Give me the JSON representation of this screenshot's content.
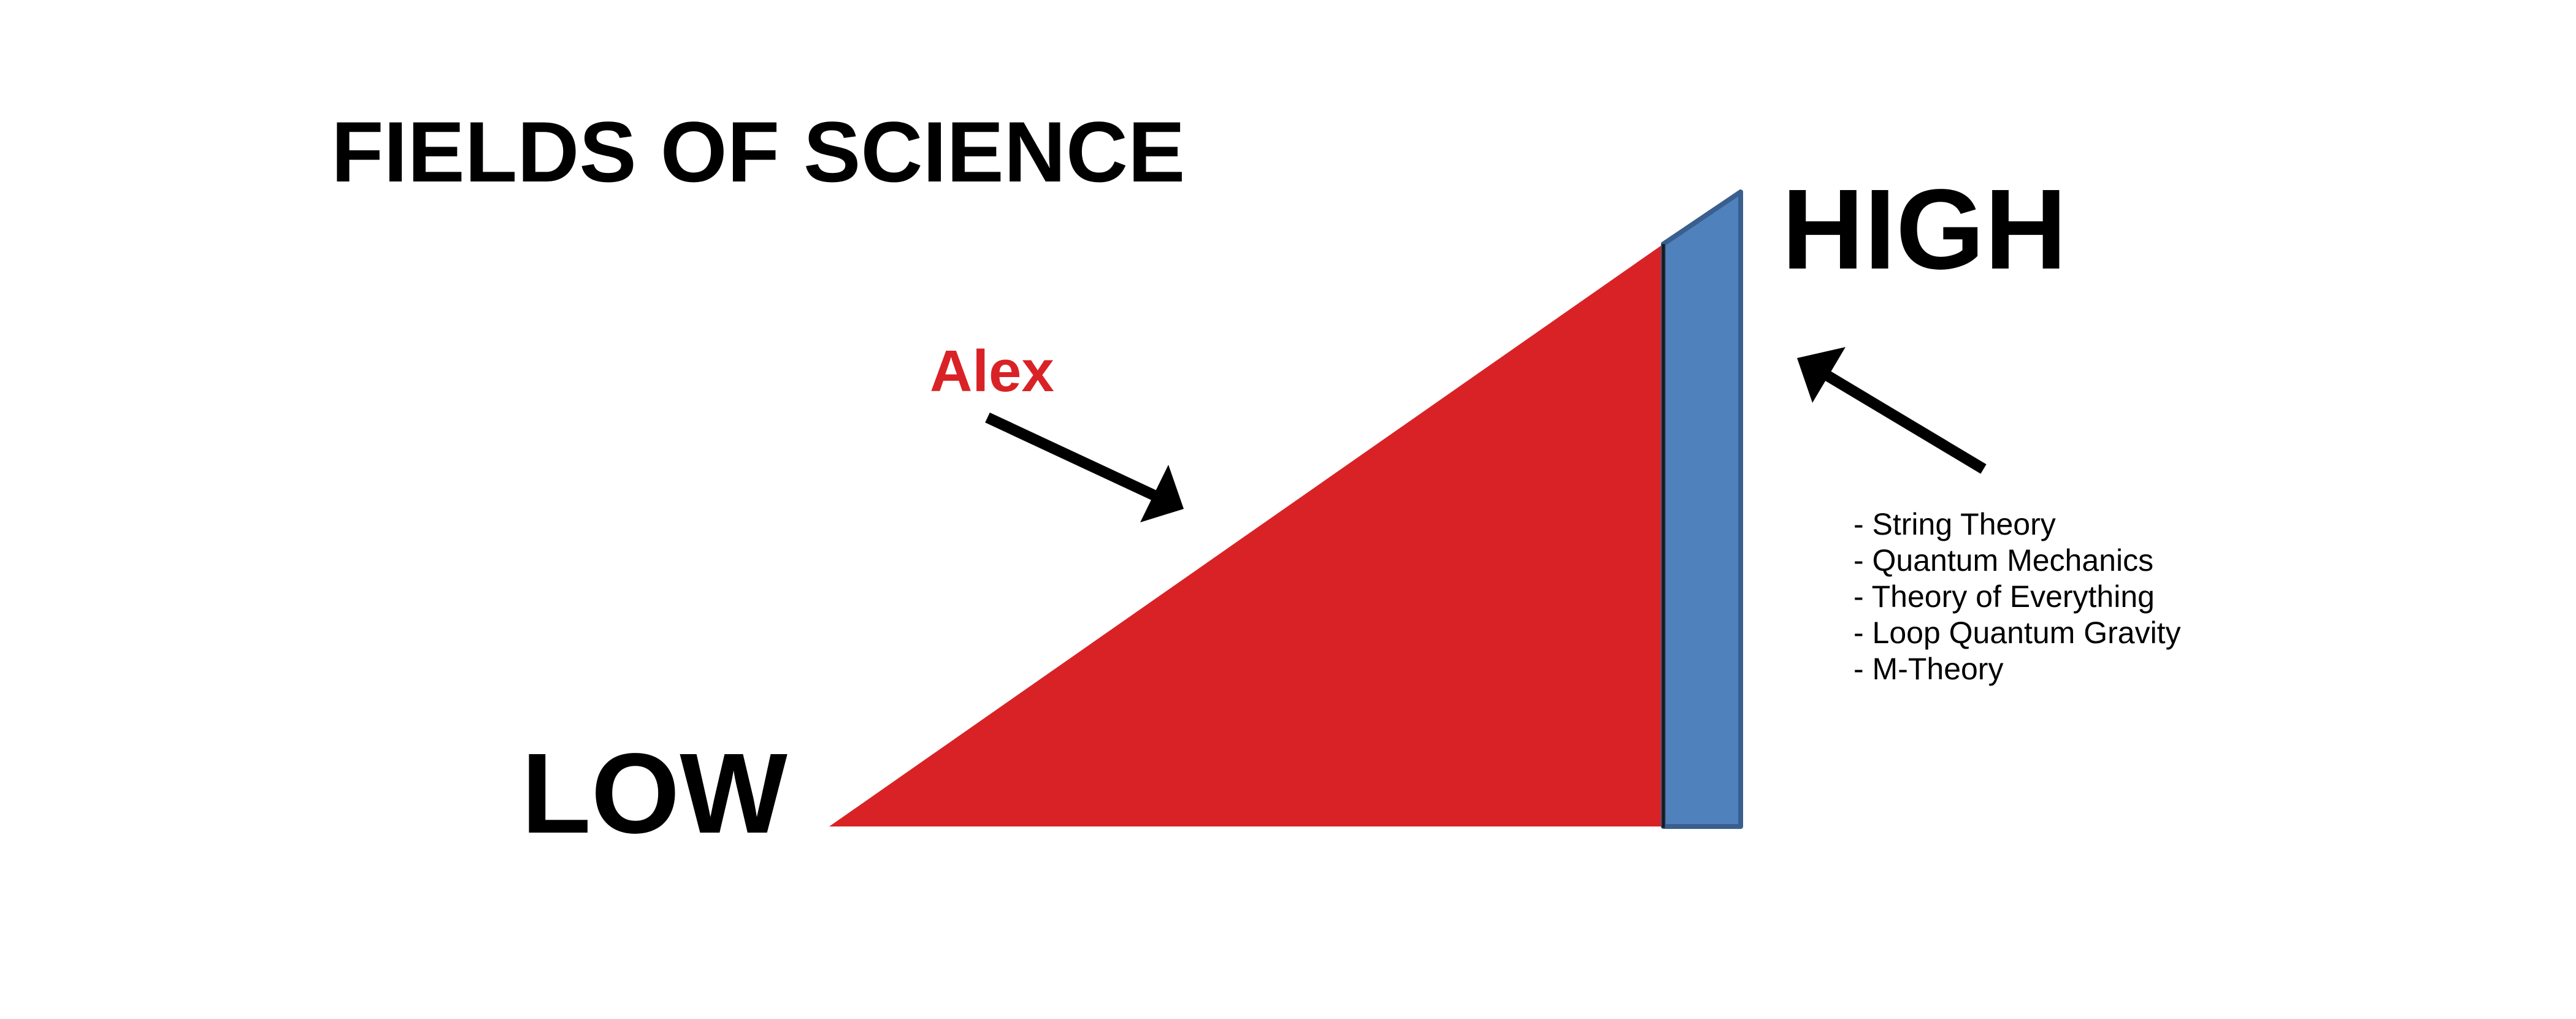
{
  "title": "FIELDS OF SCIENCE",
  "labels": {
    "high": "HIGH",
    "low": "LOW",
    "alex": "Alex"
  },
  "fields": [
    "- String Theory",
    "- Quantum Mechanics",
    "- Theory of Everything",
    "- Loop Quantum Gravity",
    "- M-Theory"
  ],
  "colors": {
    "red_region": "#d92226",
    "blue_region": "#4f81bd",
    "blue_border": "#3a5f8e",
    "alex_text": "#d92226",
    "text": "#000000"
  }
}
